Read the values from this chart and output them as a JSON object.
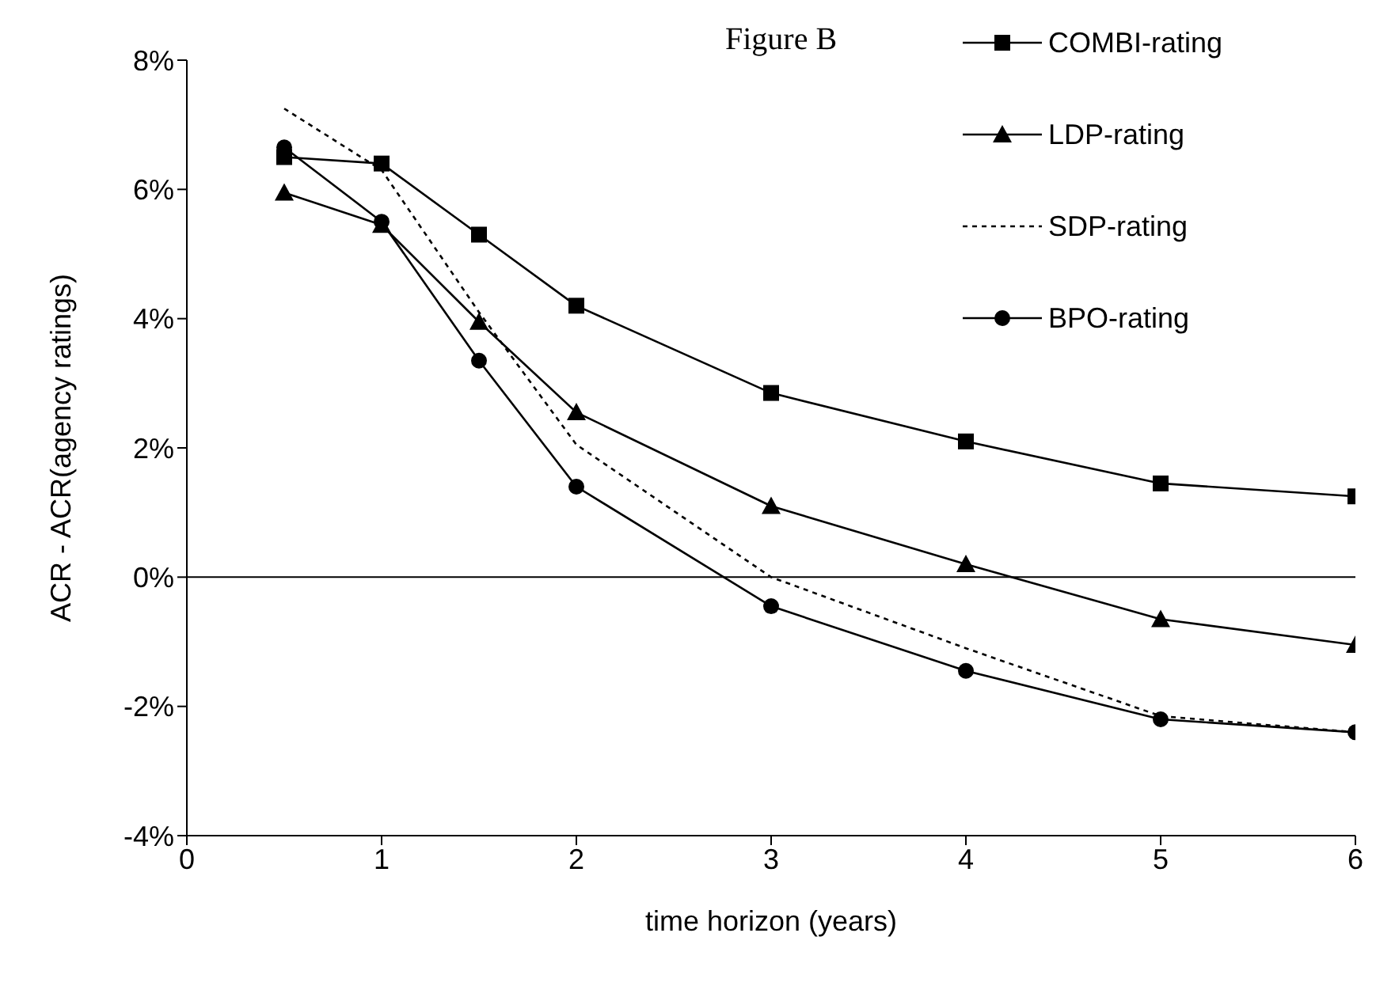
{
  "chart_data": {
    "type": "line",
    "title": "Figure B",
    "xlabel": "time horizon (years)",
    "ylabel": "ACR - ACR(agency ratings)",
    "xlim": [
      0,
      6
    ],
    "xticks": [
      0,
      1,
      2,
      3,
      4,
      5,
      6
    ],
    "ylim": [
      -4,
      8
    ],
    "yticks": [
      {
        "value": -4,
        "label": "-4%"
      },
      {
        "value": -2,
        "label": "-2%"
      },
      {
        "value": 0,
        "label": "0%"
      },
      {
        "value": 2,
        "label": "2%"
      },
      {
        "value": 4,
        "label": "4%"
      },
      {
        "value": 6,
        "label": "6%"
      },
      {
        "value": 8,
        "label": "8%"
      }
    ],
    "x": [
      0.5,
      1,
      1.5,
      2,
      3,
      4,
      5,
      6
    ],
    "series": [
      {
        "name": "COMBI-rating",
        "color": "#000000",
        "marker": "square",
        "line_style": "solid",
        "values": [
          6.5,
          6.4,
          5.3,
          4.2,
          2.85,
          2.1,
          1.45,
          1.25
        ]
      },
      {
        "name": "LDP-rating",
        "color": "#000000",
        "marker": "triangle",
        "line_style": "solid",
        "values": [
          5.95,
          5.45,
          3.95,
          2.55,
          1.1,
          0.2,
          -0.65,
          -1.05
        ]
      },
      {
        "name": "SDP-rating",
        "color": "#000000",
        "marker": "none",
        "line_style": "dotted",
        "values": [
          7.25,
          6.3,
          4.1,
          2.05,
          0.0,
          -1.1,
          -2.15,
          -2.4
        ]
      },
      {
        "name": "BPO-rating",
        "color": "#000000",
        "marker": "circle",
        "line_style": "solid",
        "values": [
          6.65,
          5.5,
          3.35,
          1.4,
          -0.45,
          -1.45,
          -2.2,
          -2.4
        ]
      }
    ],
    "ref_lines": [
      {
        "axis": "y",
        "value": 0,
        "color": "#000000"
      }
    ],
    "grid": false,
    "legend": "top right"
  }
}
